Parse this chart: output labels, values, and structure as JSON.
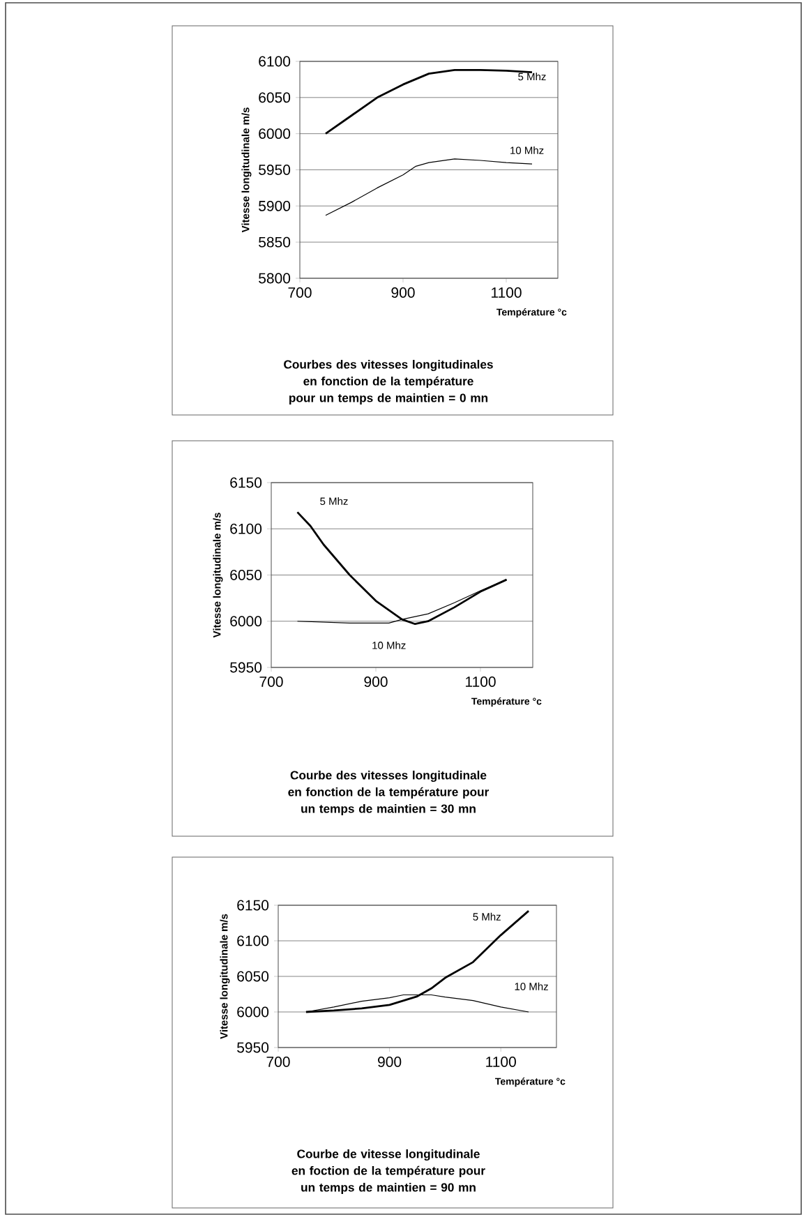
{
  "chart_data": [
    {
      "type": "line",
      "title": "Courbes des vitesses longitudinales en fonction de la température pour un temps de maintien = 0 mn",
      "xlabel": "Température °c",
      "ylabel": "Vitesse longitudinale m/s",
      "xlim": [
        700,
        1200
      ],
      "xticks": [
        700,
        900,
        1100
      ],
      "ylim": [
        5800,
        6100
      ],
      "yticks": [
        5800,
        5850,
        5900,
        5950,
        6000,
        6050,
        6100
      ],
      "grid": "y",
      "series": [
        {
          "name": "5 Mhz",
          "color": "#000000",
          "x": [
            750,
            800,
            850,
            900,
            950,
            1000,
            1050,
            1100,
            1150
          ],
          "values": [
            6000,
            6025,
            6050,
            6068,
            6083,
            6088,
            6088,
            6087,
            6085
          ]
        },
        {
          "name": "10 Mhz",
          "color": "#000000",
          "x": [
            750,
            800,
            850,
            900,
            925,
            950,
            1000,
            1050,
            1100,
            1150
          ],
          "values": [
            5887,
            5905,
            5925,
            5943,
            5955,
            5960,
            5965,
            5963,
            5960,
            5958
          ]
        }
      ]
    },
    {
      "type": "line",
      "title": "Courbe des vitesses longitudinale en fonction de la température pour un temps de maintien = 30 mn",
      "xlabel": "Température °c",
      "ylabel": "Vitesse longitudinale m/s",
      "xlim": [
        700,
        1200
      ],
      "xticks": [
        700,
        900,
        1100
      ],
      "ylim": [
        5950,
        6150
      ],
      "yticks": [
        5950,
        6000,
        6050,
        6100,
        6150
      ],
      "grid": "y",
      "series": [
        {
          "name": "5 Mhz",
          "color": "#000000",
          "x": [
            750,
            775,
            800,
            850,
            900,
            950,
            975,
            1000,
            1050,
            1100,
            1150
          ],
          "values": [
            6118,
            6103,
            6083,
            6050,
            6022,
            6002,
            5997,
            6000,
            6015,
            6032,
            6045
          ]
        },
        {
          "name": "10 Mhz",
          "color": "#000000",
          "x": [
            750,
            800,
            850,
            925,
            950,
            1000,
            1050,
            1100,
            1150
          ],
          "values": [
            6000,
            5999,
            5998,
            5998,
            6002,
            6008,
            6020,
            6033,
            6045
          ]
        }
      ]
    },
    {
      "type": "line",
      "title": "Courbe de vitesse longitudinale en foction de la température pour un temps de maintien = 90 mn",
      "xlabel": "Température °c",
      "ylabel": "Vitesse longitudinale m/s",
      "xlim": [
        700,
        1200
      ],
      "xticks": [
        700,
        900,
        1100
      ],
      "ylim": [
        5950,
        6150
      ],
      "yticks": [
        5950,
        6000,
        6050,
        6100,
        6150
      ],
      "grid": "y",
      "series": [
        {
          "name": "5 Mhz",
          "color": "#000000",
          "x": [
            750,
            800,
            850,
            900,
            950,
            975,
            1000,
            1050,
            1100,
            1150
          ],
          "values": [
            6000,
            6002,
            6005,
            6010,
            6022,
            6033,
            6048,
            6070,
            6108,
            6142
          ]
        },
        {
          "name": "10 Mhz",
          "color": "#000000",
          "x": [
            750,
            800,
            850,
            900,
            925,
            975,
            1000,
            1050,
            1100,
            1150
          ],
          "values": [
            6000,
            6007,
            6015,
            6020,
            6024,
            6024,
            6021,
            6016,
            6007,
            6000
          ]
        }
      ]
    }
  ]
}
